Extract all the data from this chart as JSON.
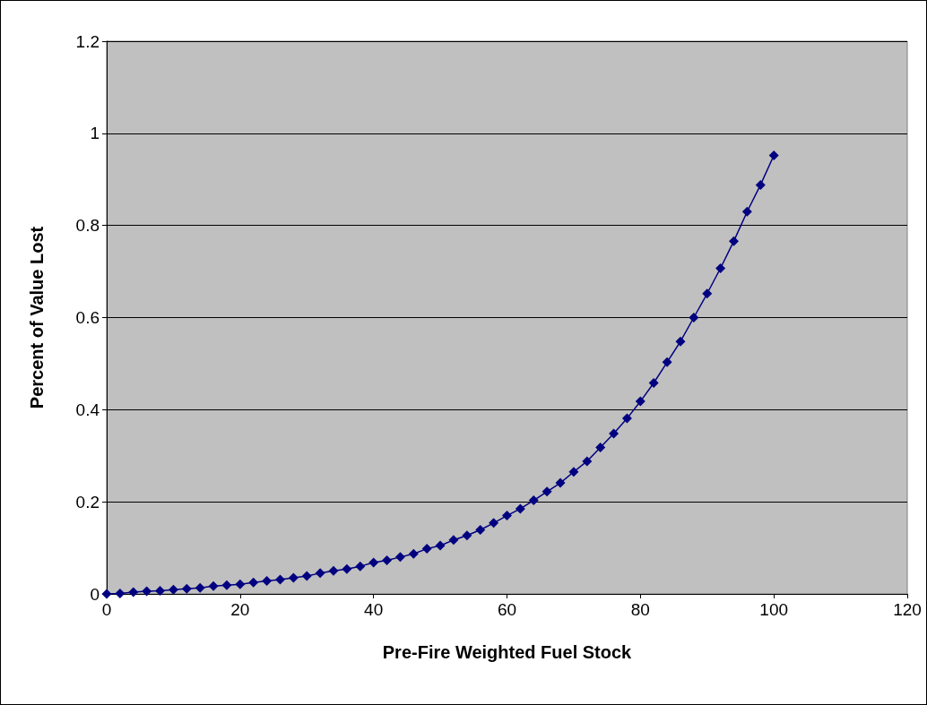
{
  "chart_data": {
    "type": "line",
    "xlabel": "Pre-Fire Weighted Fuel Stock",
    "ylabel": "Percent of Value Lost",
    "x": [
      0,
      2,
      4,
      6,
      8,
      10,
      12,
      14,
      16,
      18,
      20,
      22,
      24,
      26,
      28,
      30,
      32,
      34,
      36,
      38,
      40,
      42,
      44,
      46,
      48,
      50,
      52,
      54,
      56,
      58,
      60,
      62,
      64,
      66,
      68,
      70,
      72,
      74,
      76,
      78,
      80,
      82,
      84,
      86,
      88,
      90,
      92,
      94,
      96,
      98,
      100
    ],
    "series": [
      {
        "color": "#000080",
        "values": [
          0,
          0.001,
          0.004,
          0.006,
          0.007,
          0.009,
          0.011,
          0.013,
          0.017,
          0.019,
          0.021,
          0.025,
          0.028,
          0.031,
          0.035,
          0.039,
          0.045,
          0.05,
          0.054,
          0.06,
          0.068,
          0.073,
          0.08,
          0.087,
          0.098,
          0.105,
          0.117,
          0.127,
          0.139,
          0.154,
          0.17,
          0.185,
          0.203,
          0.222,
          0.241,
          0.265,
          0.288,
          0.318,
          0.348,
          0.381,
          0.418,
          0.458,
          0.503,
          0.548,
          0.6,
          0.652,
          0.707,
          0.766,
          0.83,
          0.888,
          0.952
        ]
      }
    ],
    "xlim": [
      0,
      120
    ],
    "xticks": [
      0,
      20,
      40,
      60,
      80,
      100,
      120
    ],
    "ylim": [
      0,
      1.2
    ],
    "yticks": [
      0,
      0.2,
      0.4,
      0.6,
      0.8,
      1,
      1.2
    ],
    "grid": "y",
    "marker": "diamond",
    "line_style": "solid"
  }
}
